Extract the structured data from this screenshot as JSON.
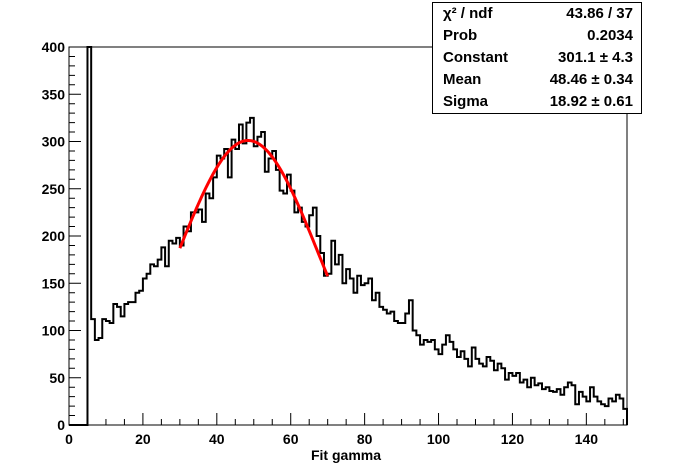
{
  "chart_data": {
    "type": "histogram",
    "title": "",
    "xlabel": "Fit gamma",
    "ylabel": "",
    "xlim": [
      0,
      151
    ],
    "ylim": [
      0,
      400
    ],
    "xticks": [
      0,
      20,
      40,
      60,
      80,
      100,
      120,
      140
    ],
    "yticks": [
      0,
      50,
      100,
      150,
      200,
      250,
      300,
      350,
      400
    ],
    "grid": false,
    "bin_width": 1,
    "bins": [
      [
        0,
        0
      ],
      [
        1,
        0
      ],
      [
        2,
        0
      ],
      [
        3,
        0
      ],
      [
        4,
        0
      ],
      [
        5,
        400
      ],
      [
        6,
        112
      ],
      [
        7,
        90
      ],
      [
        8,
        92
      ],
      [
        9,
        112
      ],
      [
        10,
        110
      ],
      [
        11,
        108
      ],
      [
        12,
        128
      ],
      [
        13,
        125
      ],
      [
        14,
        115
      ],
      [
        15,
        128
      ],
      [
        16,
        130
      ],
      [
        17,
        130
      ],
      [
        18,
        140
      ],
      [
        19,
        142
      ],
      [
        20,
        155
      ],
      [
        21,
        160
      ],
      [
        22,
        170
      ],
      [
        23,
        168
      ],
      [
        24,
        175
      ],
      [
        25,
        188
      ],
      [
        26,
        168
      ],
      [
        27,
        195
      ],
      [
        28,
        192
      ],
      [
        29,
        198
      ],
      [
        30,
        190
      ],
      [
        31,
        210
      ],
      [
        32,
        205
      ],
      [
        33,
        225
      ],
      [
        34,
        225
      ],
      [
        35,
        228
      ],
      [
        36,
        215
      ],
      [
        37,
        245
      ],
      [
        38,
        240
      ],
      [
        39,
        262
      ],
      [
        40,
        285
      ],
      [
        41,
        282
      ],
      [
        42,
        292
      ],
      [
        43,
        262
      ],
      [
        44,
        302
      ],
      [
        45,
        292
      ],
      [
        46,
        318
      ],
      [
        47,
        298
      ],
      [
        48,
        320
      ],
      [
        49,
        325
      ],
      [
        50,
        295
      ],
      [
        51,
        305
      ],
      [
        52,
        310
      ],
      [
        53,
        268
      ],
      [
        54,
        282
      ],
      [
        55,
        290
      ],
      [
        56,
        270
      ],
      [
        57,
        248
      ],
      [
        58,
        245
      ],
      [
        59,
        265
      ],
      [
        60,
        248
      ],
      [
        61,
        225
      ],
      [
        62,
        230
      ],
      [
        63,
        215
      ],
      [
        64,
        210
      ],
      [
        65,
        222
      ],
      [
        66,
        230
      ],
      [
        67,
        200
      ],
      [
        68,
        182
      ],
      [
        69,
        158
      ],
      [
        70,
        160
      ],
      [
        71,
        195
      ],
      [
        72,
        170
      ],
      [
        73,
        180
      ],
      [
        74,
        150
      ],
      [
        75,
        165
      ],
      [
        76,
        155
      ],
      [
        77,
        140
      ],
      [
        78,
        158
      ],
      [
        79,
        148
      ],
      [
        80,
        150
      ],
      [
        81,
        155
      ],
      [
        82,
        132
      ],
      [
        83,
        140
      ],
      [
        84,
        125
      ],
      [
        85,
        122
      ],
      [
        86,
        118
      ],
      [
        87,
        120
      ],
      [
        88,
        110
      ],
      [
        89,
        108
      ],
      [
        90,
        108
      ],
      [
        91,
        118
      ],
      [
        92,
        132
      ],
      [
        93,
        100
      ],
      [
        94,
        95
      ],
      [
        95,
        85
      ],
      [
        96,
        90
      ],
      [
        97,
        88
      ],
      [
        98,
        90
      ],
      [
        99,
        80
      ],
      [
        100,
        75
      ],
      [
        101,
        85
      ],
      [
        102,
        95
      ],
      [
        103,
        88
      ],
      [
        104,
        80
      ],
      [
        105,
        72
      ],
      [
        106,
        78
      ],
      [
        107,
        70
      ],
      [
        108,
        62
      ],
      [
        109,
        82
      ],
      [
        110,
        70
      ],
      [
        111,
        65
      ],
      [
        112,
        62
      ],
      [
        113,
        72
      ],
      [
        114,
        68
      ],
      [
        115,
        58
      ],
      [
        116,
        65
      ],
      [
        117,
        60
      ],
      [
        118,
        48
      ],
      [
        119,
        55
      ],
      [
        120,
        52
      ],
      [
        121,
        55
      ],
      [
        122,
        45
      ],
      [
        123,
        48
      ],
      [
        124,
        40
      ],
      [
        125,
        50
      ],
      [
        126,
        42
      ],
      [
        127,
        44
      ],
      [
        128,
        38
      ],
      [
        129,
        40
      ],
      [
        130,
        36
      ],
      [
        131,
        35
      ],
      [
        132,
        38
      ],
      [
        133,
        32
      ],
      [
        134,
        40
      ],
      [
        135,
        45
      ],
      [
        136,
        42
      ],
      [
        137,
        22
      ],
      [
        138,
        35
      ],
      [
        139,
        30
      ],
      [
        140,
        25
      ],
      [
        141,
        40
      ],
      [
        142,
        30
      ],
      [
        143,
        25
      ],
      [
        144,
        22
      ],
      [
        145,
        20
      ],
      [
        146,
        28
      ],
      [
        147,
        25
      ],
      [
        148,
        32
      ],
      [
        149,
        28
      ],
      [
        150,
        17
      ]
    ],
    "fit": {
      "function": "gaus",
      "constant": 301.1,
      "mean": 48.46,
      "sigma": 18.92,
      "range": [
        30,
        70
      ],
      "color": "#ff0000"
    },
    "stats": [
      {
        "label": "χ² / ndf",
        "value": "43.86 / 37"
      },
      {
        "label": "Prob",
        "value": "0.2034"
      },
      {
        "label": "Constant",
        "value": "301.1 ± 4.3"
      },
      {
        "label": "Mean",
        "value": "48.46 ± 0.34"
      },
      {
        "label": "Sigma",
        "value": "18.92 ± 0.61"
      }
    ]
  }
}
